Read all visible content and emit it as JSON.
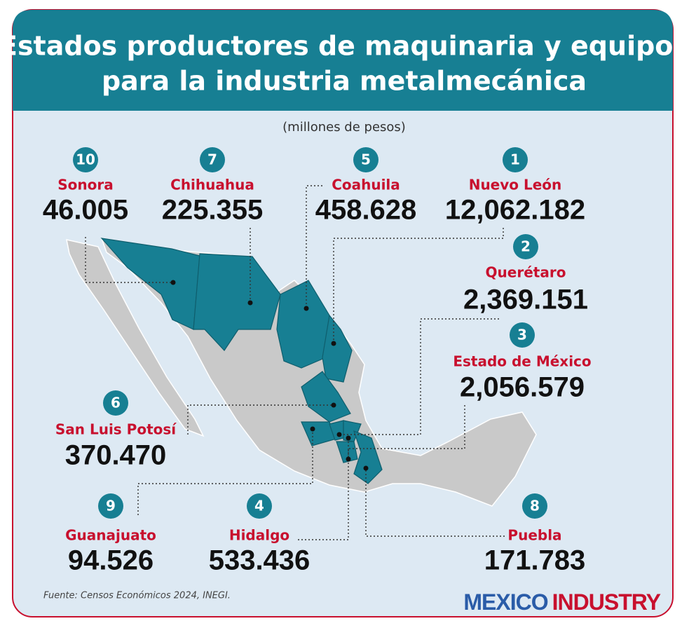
{
  "header": {
    "title_line1": "Estados productores de maquinaria y equipos",
    "title_line2": "para la industria metalmecánica"
  },
  "subtitle": "(millones de pesos)",
  "states": [
    {
      "rank": "10",
      "name": "Sonora",
      "value": "46.005"
    },
    {
      "rank": "7",
      "name": "Chihuahua",
      "value": "225.355"
    },
    {
      "rank": "5",
      "name": "Coahuila",
      "value": "458.628"
    },
    {
      "rank": "1",
      "name": "Nuevo León",
      "value": "12,062.182"
    },
    {
      "rank": "2",
      "name": "Querétaro",
      "value": "2,369.151"
    },
    {
      "rank": "3",
      "name": "Estado de México",
      "value": "2,056.579"
    },
    {
      "rank": "6",
      "name": "San Luis Potosí",
      "value": "370.470"
    },
    {
      "rank": "9",
      "name": "Guanajuato",
      "value": "94.526"
    },
    {
      "rank": "4",
      "name": "Hidalgo",
      "value": "533.436"
    },
    {
      "rank": "8",
      "name": "Puebla",
      "value": "171.783"
    }
  ],
  "source": "Fuente: Censos Económicos 2024, INEGI.",
  "logo": {
    "part1": "MEXICO",
    "part2": "INDUSTRY"
  }
}
